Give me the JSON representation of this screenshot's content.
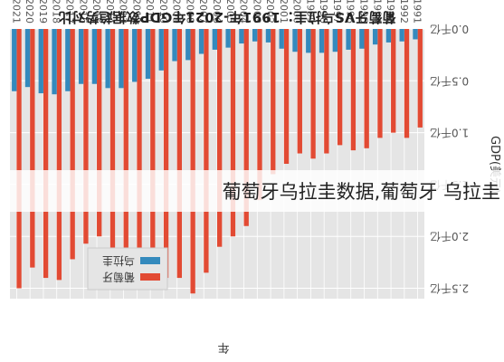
{
  "chart_data": {
    "type": "bar",
    "title": "葡萄牙VS乌拉圭：1991年-2021年GDP数据趋势对比",
    "xlabel": "年",
    "ylabel": "GDP(美元)",
    "categories": [
      "1991",
      "1992",
      "1993",
      "1994",
      "1995",
      "1996",
      "1997",
      "1998",
      "1999",
      "2000",
      "2001",
      "2002",
      "2003",
      "2004",
      "2005",
      "2006",
      "2007",
      "2008",
      "2009",
      "2010",
      "2011",
      "2012",
      "2013",
      "2014",
      "2015",
      "2016",
      "2017",
      "2018",
      "2019",
      "2020",
      "2021"
    ],
    "ylim": [
      0,
      2.6
    ],
    "yticks": [
      "0.0千亿",
      "0.5千亿",
      "1.0千亿",
      "1.5千亿",
      "2.0千亿",
      "2.5千亿"
    ],
    "legend_position": "top-right",
    "grid": true,
    "series": [
      {
        "name": "葡萄牙",
        "color": "#E24A33",
        "values": [
          0.95,
          1.05,
          1.0,
          1.05,
          1.15,
          1.17,
          1.12,
          1.2,
          1.25,
          1.2,
          1.3,
          1.4,
          1.65,
          1.9,
          2.0,
          2.1,
          2.35,
          2.55,
          2.4,
          2.4,
          2.45,
          2.2,
          2.28,
          2.3,
          2.0,
          2.07,
          2.22,
          2.42,
          2.4,
          2.3,
          2.5
        ]
      },
      {
        "name": "乌拉圭",
        "color": "#348ABD",
        "values": [
          0.1,
          0.12,
          0.13,
          0.15,
          0.19,
          0.2,
          0.22,
          0.23,
          0.23,
          0.22,
          0.19,
          0.13,
          0.12,
          0.14,
          0.18,
          0.2,
          0.24,
          0.3,
          0.31,
          0.4,
          0.48,
          0.51,
          0.57,
          0.57,
          0.53,
          0.53,
          0.6,
          0.63,
          0.62,
          0.56,
          0.6
        ]
      }
    ]
  },
  "overlay": {
    "caption": "葡萄牙乌拉圭数据,葡萄牙 乌拉圭"
  }
}
